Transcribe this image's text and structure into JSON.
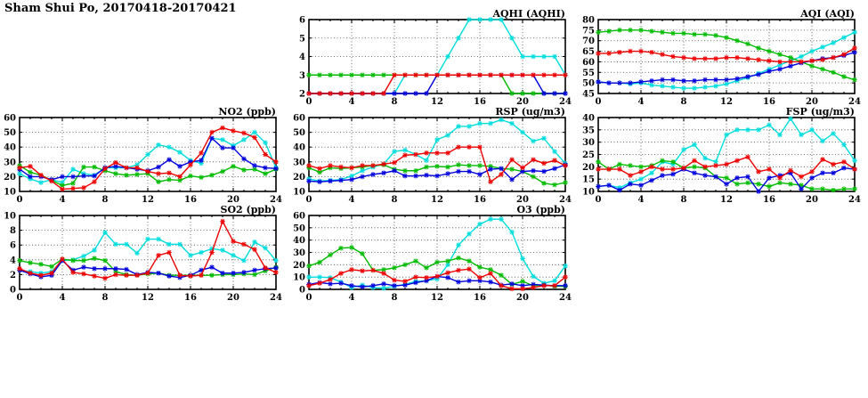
{
  "title": "Sham Shui Po, 20170418-20170421",
  "colors": {
    "blue": "#0000dd",
    "red": "#ee0000",
    "green": "#00bb00",
    "cyan": "#00dddd"
  },
  "chart_data": [
    {
      "id": "aqhi",
      "type": "line",
      "title": "AQHI (AQHI)",
      "xlabel": "",
      "ylabel": "",
      "x_start": 0,
      "x_step": 1,
      "xlim": [
        0,
        24
      ],
      "xticks": [
        0,
        4,
        8,
        12,
        16,
        20,
        24
      ],
      "ylim": [
        2,
        6
      ],
      "yticks": [
        2,
        3,
        4,
        5,
        6
      ],
      "grid": true,
      "legend": "none",
      "series": [
        {
          "name": "series-cyan",
          "color": "#00dddd",
          "values": [
            2,
            2,
            2,
            2,
            2,
            2,
            2,
            2,
            2,
            3,
            3,
            3,
            3,
            4,
            5,
            6,
            6,
            6,
            6,
            5,
            4,
            4,
            4,
            4,
            3
          ]
        },
        {
          "name": "series-green",
          "color": "#00bb00",
          "values": [
            3,
            3,
            3,
            3,
            3,
            3,
            3,
            3,
            3,
            3,
            3,
            3,
            3,
            3,
            3,
            3,
            3,
            3,
            3,
            2,
            2,
            2,
            2,
            2,
            2
          ]
        },
        {
          "name": "series-blue",
          "color": "#0000dd",
          "values": [
            2,
            2,
            2,
            2,
            2,
            2,
            2,
            2,
            2,
            2,
            2,
            2,
            3,
            3,
            3,
            3,
            3,
            3,
            3,
            3,
            3,
            3,
            2,
            2,
            2
          ]
        },
        {
          "name": "series-red",
          "color": "#ee0000",
          "values": [
            2,
            2,
            2,
            2,
            2,
            2,
            2,
            2,
            3,
            3,
            3,
            3,
            3,
            3,
            3,
            3,
            3,
            3,
            3,
            3,
            3,
            3,
            3,
            3,
            3
          ]
        }
      ]
    },
    {
      "id": "aqi",
      "type": "line",
      "title": "AQI (AQI)",
      "xlabel": "",
      "ylabel": "",
      "x_start": 0,
      "x_step": 1,
      "xlim": [
        0,
        24
      ],
      "xticks": [
        0,
        4,
        8,
        12,
        16,
        20,
        24
      ],
      "ylim": [
        45,
        80
      ],
      "yticks": [
        45,
        50,
        55,
        60,
        65,
        70,
        75,
        80
      ],
      "grid": true,
      "legend": "none",
      "series": [
        {
          "name": "series-cyan",
          "color": "#00dddd",
          "values": [
            50.5,
            50,
            50,
            49.5,
            50,
            49,
            48.5,
            48,
            47.5,
            47.5,
            48,
            48.5,
            49.5,
            51,
            52.5,
            54.5,
            56.5,
            58.5,
            60.5,
            62.5,
            65,
            67,
            69,
            71.5,
            74
          ]
        },
        {
          "name": "series-green",
          "color": "#00bb00",
          "values": [
            74,
            74.5,
            75,
            75,
            75,
            74.5,
            74,
            73.5,
            73.5,
            73,
            73,
            72.5,
            71.5,
            70,
            68.5,
            66.5,
            65,
            63.5,
            62,
            60,
            58,
            56.5,
            55,
            53,
            51.5
          ]
        },
        {
          "name": "series-blue",
          "color": "#0000dd",
          "values": [
            50.5,
            50,
            50,
            50,
            50.5,
            51,
            51.5,
            51.5,
            51,
            51,
            51.5,
            51.5,
            51.5,
            52,
            53,
            54,
            55.5,
            56.5,
            58,
            59.5,
            60.5,
            61.5,
            62,
            63,
            64.5
          ]
        },
        {
          "name": "series-red",
          "color": "#ee0000",
          "values": [
            64,
            64,
            64.5,
            65,
            65,
            64.5,
            63.5,
            62.5,
            62,
            61.5,
            61.5,
            61.5,
            62,
            62,
            61.5,
            61,
            60.5,
            60,
            60,
            60,
            60.5,
            61,
            62,
            63.5,
            66.5
          ]
        }
      ]
    },
    {
      "id": "no2",
      "type": "line",
      "title": "NO2 (ppb)",
      "xlabel": "",
      "ylabel": "",
      "x_start": 0,
      "x_step": 1,
      "xlim": [
        0,
        24
      ],
      "xticks": [
        0,
        4,
        8,
        12,
        16,
        20,
        24
      ],
      "ylim": [
        10,
        60
      ],
      "yticks": [
        10,
        20,
        30,
        40,
        50,
        60
      ],
      "grid": true,
      "legend": "none",
      "series": [
        {
          "name": "series-cyan",
          "color": "#00dddd",
          "values": [
            22,
            18.5,
            16,
            18,
            16,
            25,
            22,
            21,
            26,
            26,
            26,
            28,
            35,
            41.5,
            40,
            36.5,
            31,
            29,
            46,
            45,
            41,
            45,
            50,
            43,
            26
          ]
        },
        {
          "name": "series-green",
          "color": "#00bb00",
          "values": [
            27.5,
            23,
            21,
            17.5,
            14,
            15.5,
            26.5,
            26.5,
            24,
            22,
            21,
            21.5,
            22,
            16.5,
            18,
            17.5,
            20.5,
            19.5,
            21,
            23.5,
            27,
            24.5,
            25,
            22,
            25
          ]
        },
        {
          "name": "series-blue",
          "color": "#0000dd",
          "values": [
            25,
            20,
            20,
            18,
            20,
            20,
            20.5,
            20.5,
            26,
            27,
            26,
            25,
            24,
            26.5,
            31.5,
            27,
            30,
            31,
            46,
            39.5,
            39.5,
            32,
            27.5,
            26,
            25.5
          ]
        },
        {
          "name": "series-red",
          "color": "#ee0000",
          "values": [
            26,
            27,
            21,
            17,
            11.5,
            12,
            12.5,
            16.5,
            25.5,
            29.5,
            26,
            26,
            23.5,
            22,
            22.5,
            20,
            28,
            36,
            50,
            53,
            51,
            49.5,
            46.5,
            35,
            30
          ]
        }
      ]
    },
    {
      "id": "rsp",
      "type": "line",
      "title": "RSP (ug/m3)",
      "xlabel": "",
      "ylabel": "",
      "x_start": 0,
      "x_step": 1,
      "xlim": [
        0,
        24
      ],
      "xticks": [
        0,
        4,
        8,
        12,
        16,
        20,
        24
      ],
      "ylim": [
        10,
        60
      ],
      "yticks": [
        10,
        20,
        30,
        40,
        50,
        60
      ],
      "grid": true,
      "legend": "none",
      "series": [
        {
          "name": "series-cyan",
          "color": "#00dddd",
          "values": [
            18.5,
            17,
            17.5,
            18,
            20.5,
            24,
            26.5,
            28.5,
            37,
            38,
            35,
            31,
            45,
            48,
            54,
            54,
            56,
            56,
            58.5,
            56,
            50,
            44,
            46,
            37,
            29
          ]
        },
        {
          "name": "series-green",
          "color": "#00bb00",
          "values": [
            26,
            23,
            26,
            25.5,
            26,
            26.5,
            27.5,
            28,
            25,
            24,
            24,
            26.5,
            27,
            26.5,
            28,
            27.5,
            27.5,
            27,
            25.5,
            25,
            23.5,
            20,
            15.5,
            14.5,
            16
          ]
        },
        {
          "name": "series-blue",
          "color": "#0000dd",
          "values": [
            17,
            16.5,
            17,
            17.5,
            18,
            20,
            21.5,
            22.5,
            24,
            20.5,
            20.5,
            21,
            20.5,
            22,
            23.5,
            23.5,
            21.5,
            25,
            25.5,
            18,
            23.5,
            24,
            23.5,
            25.5,
            28
          ]
        },
        {
          "name": "series-red",
          "color": "#ee0000",
          "values": [
            27.5,
            25.5,
            27.5,
            26.5,
            26,
            27.5,
            27.5,
            28.5,
            29.5,
            34.5,
            35,
            36,
            36,
            36,
            40,
            40,
            40,
            16.5,
            21.5,
            31.5,
            26,
            31.5,
            29,
            31,
            27.5
          ]
        }
      ]
    },
    {
      "id": "fsp",
      "type": "line",
      "title": "FSP (ug/m3)",
      "xlabel": "",
      "ylabel": "",
      "x_start": 0,
      "x_step": 1,
      "xlim": [
        0,
        24
      ],
      "xticks": [
        0,
        4,
        8,
        12,
        16,
        20,
        24
      ],
      "ylim": [
        10,
        40
      ],
      "yticks": [
        10,
        15,
        20,
        25,
        30,
        35,
        40
      ],
      "grid": true,
      "legend": "none",
      "series": [
        {
          "name": "series-cyan",
          "color": "#00dddd",
          "values": [
            12,
            12.5,
            11.5,
            13.5,
            15,
            17.5,
            22,
            21,
            27,
            29,
            23.5,
            22,
            33,
            35,
            35,
            35,
            37,
            33,
            39.5,
            33,
            35,
            30.5,
            33.5,
            29,
            22.5
          ]
        },
        {
          "name": "series-green",
          "color": "#00bb00",
          "values": [
            22,
            19,
            21,
            20.5,
            20,
            20.5,
            22.5,
            22,
            19.5,
            20,
            19.5,
            16,
            15.5,
            13,
            13.5,
            13,
            12,
            13.5,
            13,
            12.5,
            11,
            11,
            10.5,
            11,
            11
          ]
        },
        {
          "name": "series-blue",
          "color": "#0000dd",
          "values": [
            12,
            12.5,
            10.5,
            13,
            12.5,
            14.5,
            16.5,
            17,
            19,
            17.5,
            16.5,
            16,
            13,
            15.5,
            16,
            10,
            15.5,
            16.5,
            17.5,
            11,
            15.5,
            17.5,
            17.5,
            19.5,
            19
          ]
        },
        {
          "name": "series-red",
          "color": "#ee0000",
          "values": [
            19,
            19,
            19,
            16.5,
            18,
            20,
            19,
            19,
            19.5,
            22.5,
            20,
            20.5,
            21,
            22.5,
            24,
            18,
            19,
            15.5,
            18.5,
            16,
            18,
            23,
            21,
            22,
            19
          ]
        }
      ]
    },
    {
      "id": "so2",
      "type": "line",
      "title": "SO2 (ppb)",
      "xlabel": "",
      "ylabel": "",
      "x_start": 0,
      "x_step": 1,
      "xlim": [
        0,
        24
      ],
      "xticks": [
        0,
        4,
        8,
        12,
        16,
        20,
        24
      ],
      "ylim": [
        0,
        10
      ],
      "yticks": [
        0,
        2,
        4,
        6,
        8,
        10
      ],
      "grid": true,
      "legend": "none",
      "series": [
        {
          "name": "series-cyan",
          "color": "#00dddd",
          "values": [
            2.6,
            2.4,
            2.2,
            2.4,
            3.9,
            4,
            4.5,
            5.3,
            7.7,
            6.1,
            6.1,
            4.9,
            6.8,
            6.8,
            6.1,
            6.1,
            4.6,
            5,
            5.5,
            5.3,
            4.6,
            3.9,
            6.4,
            5.6,
            3.9
          ]
        },
        {
          "name": "series-green",
          "color": "#00bb00",
          "values": [
            3.9,
            3.6,
            3.4,
            3.1,
            4.1,
            3.9,
            3.9,
            4.2,
            3.9,
            2.4,
            2,
            1.9,
            2.1,
            2.2,
            1.9,
            1.9,
            1.9,
            1.9,
            1.9,
            2,
            2,
            2.1,
            2,
            2.5,
            3
          ]
        },
        {
          "name": "series-blue",
          "color": "#0000dd",
          "values": [
            2.6,
            2.1,
            1.7,
            1.9,
            3.9,
            2.6,
            3,
            2.8,
            2.8,
            2.8,
            2.7,
            2,
            2.3,
            2.2,
            1.8,
            1.6,
            1.9,
            2.6,
            3,
            2.2,
            2.2,
            2.3,
            2.6,
            2.8,
            2.9
          ]
        },
        {
          "name": "series-red",
          "color": "#ee0000",
          "values": [
            2.8,
            2.2,
            1.9,
            2.2,
            4.1,
            2.3,
            2.1,
            1.8,
            1.5,
            2,
            1.9,
            1.9,
            2.2,
            4.6,
            5,
            1.9,
            1.8,
            1.9,
            5,
            9.2,
            6.5,
            6.1,
            5.4,
            2.9,
            2.3
          ]
        }
      ]
    },
    {
      "id": "o3",
      "type": "line",
      "title": "O3 (ppb)",
      "xlabel": "",
      "ylabel": "",
      "x_start": 0,
      "x_step": 1,
      "xlim": [
        0,
        24
      ],
      "xticks": [
        0,
        4,
        8,
        12,
        16,
        20,
        24
      ],
      "ylim": [
        0,
        60
      ],
      "yticks": [
        0,
        10,
        20,
        30,
        40,
        50,
        60
      ],
      "grid": true,
      "legend": "none",
      "series": [
        {
          "name": "series-cyan",
          "color": "#00dddd",
          "values": [
            10,
            10,
            9.5,
            6,
            1.5,
            3.5,
            1.5,
            1,
            2.5,
            4,
            6.5,
            7,
            8.5,
            20,
            36,
            45,
            53,
            57,
            57,
            46.5,
            25,
            10.5,
            5,
            7,
            19
          ]
        },
        {
          "name": "series-green",
          "color": "#00bb00",
          "values": [
            19,
            22,
            28,
            33.5,
            34,
            29,
            15.5,
            16,
            17.5,
            20,
            23,
            17.5,
            22,
            23,
            25.5,
            23,
            18,
            16,
            11.5,
            4,
            6.5,
            3,
            3.5,
            2.5,
            2.5
          ]
        },
        {
          "name": "series-blue",
          "color": "#0000dd",
          "values": [
            4,
            5.5,
            4.5,
            5,
            3,
            2,
            3,
            4.5,
            3,
            3.5,
            5.5,
            7,
            10.5,
            9.5,
            6,
            7,
            7,
            6,
            3.5,
            4.5,
            3,
            4,
            3.5,
            3,
            3
          ]
        },
        {
          "name": "series-red",
          "color": "#ee0000",
          "values": [
            3,
            5,
            8,
            13,
            16,
            15,
            15.5,
            13,
            7.5,
            6.5,
            10,
            9.5,
            10.5,
            13.5,
            15.5,
            16.5,
            9.5,
            13,
            3,
            0.5,
            0.5,
            1.5,
            3,
            3,
            10
          ]
        }
      ]
    }
  ]
}
